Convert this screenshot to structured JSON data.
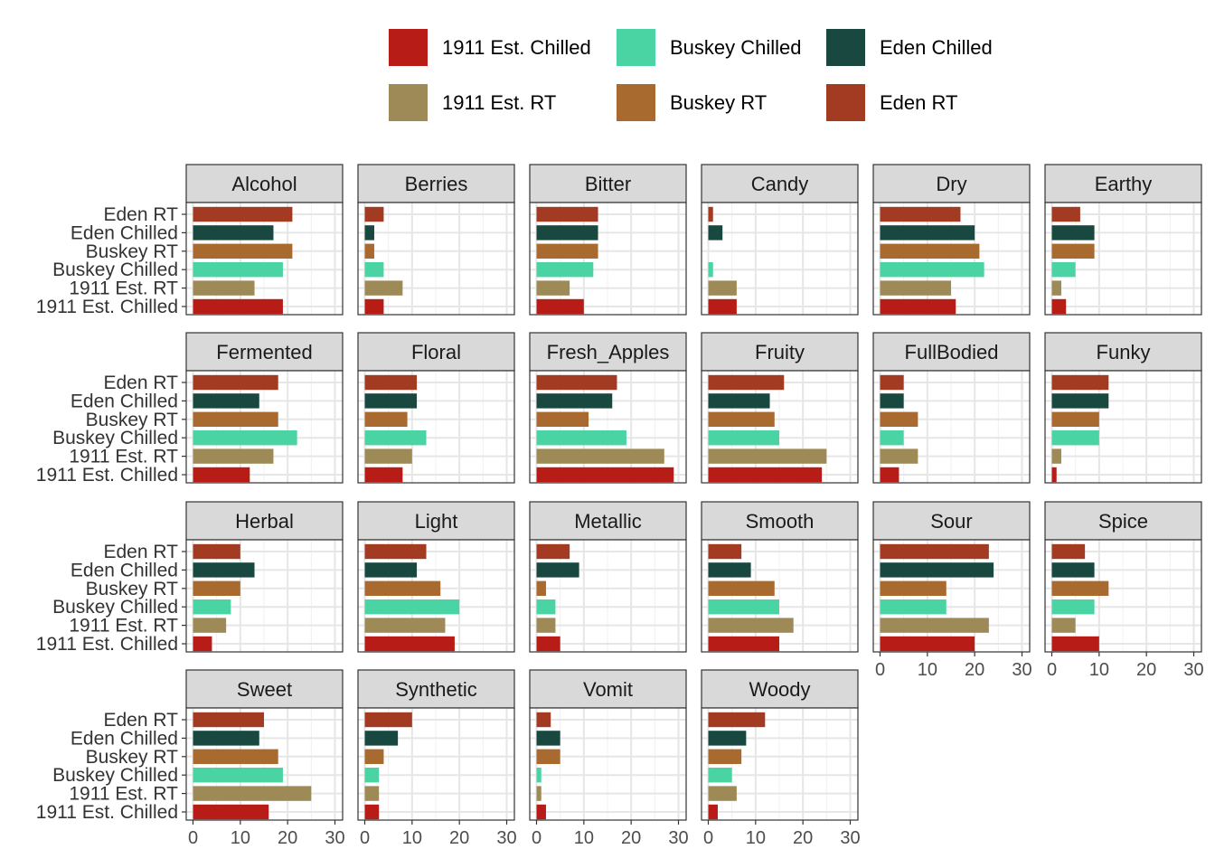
{
  "chart_data": {
    "type": "bar",
    "orientation": "horizontal",
    "facet_columns": 6,
    "categories": [
      "Eden RT",
      "Eden Chilled",
      "Buskey RT",
      "Buskey Chilled",
      "1911 Est. RT",
      "1911 Est. Chilled"
    ],
    "series_colors": {
      "Eden RT": "#A23B22",
      "Eden Chilled": "#184840",
      "Buskey RT": "#A86A2E",
      "Buskey Chilled": "#4AD3A3",
      "1911 Est. RT": "#9E8A56",
      "1911 Est. Chilled": "#B81C17"
    },
    "legend": {
      "position": "top",
      "entries": [
        "1911 Est. Chilled",
        "Buskey Chilled",
        "Eden Chilled",
        "1911 Est. RT",
        "Buskey RT",
        "Eden RT"
      ]
    },
    "xlim": [
      0,
      30
    ],
    "xticks": [
      0,
      10,
      20,
      30
    ],
    "grid": true,
    "facets": [
      {
        "name": "Alcohol",
        "values": [
          21,
          17,
          21,
          19,
          13,
          19
        ]
      },
      {
        "name": "Berries",
        "values": [
          4,
          2,
          2,
          4,
          8,
          4
        ]
      },
      {
        "name": "Bitter",
        "values": [
          13,
          13,
          13,
          12,
          7,
          10
        ]
      },
      {
        "name": "Candy",
        "values": [
          1,
          3,
          0,
          1,
          6,
          6
        ]
      },
      {
        "name": "Dry",
        "values": [
          17,
          20,
          21,
          22,
          15,
          16
        ]
      },
      {
        "name": "Earthy",
        "values": [
          6,
          9,
          9,
          5,
          2,
          3
        ]
      },
      {
        "name": "Fermented",
        "values": [
          18,
          14,
          18,
          22,
          17,
          12
        ]
      },
      {
        "name": "Floral",
        "values": [
          11,
          11,
          9,
          13,
          10,
          8
        ]
      },
      {
        "name": "Fresh_Apples",
        "values": [
          17,
          16,
          11,
          19,
          27,
          29
        ]
      },
      {
        "name": "Fruity",
        "values": [
          16,
          13,
          14,
          15,
          25,
          24
        ]
      },
      {
        "name": "FullBodied",
        "values": [
          5,
          5,
          8,
          5,
          8,
          4
        ]
      },
      {
        "name": "Funky",
        "values": [
          12,
          12,
          10,
          10,
          2,
          1
        ]
      },
      {
        "name": "Herbal",
        "values": [
          10,
          13,
          10,
          8,
          7,
          4
        ]
      },
      {
        "name": "Light",
        "values": [
          13,
          11,
          16,
          20,
          17,
          19
        ]
      },
      {
        "name": "Metallic",
        "values": [
          7,
          9,
          2,
          4,
          4,
          5
        ]
      },
      {
        "name": "Smooth",
        "values": [
          7,
          9,
          14,
          15,
          18,
          15
        ]
      },
      {
        "name": "Sour",
        "values": [
          23,
          24,
          14,
          14,
          23,
          20
        ]
      },
      {
        "name": "Spice",
        "values": [
          7,
          9,
          12,
          9,
          5,
          10
        ]
      },
      {
        "name": "Sweet",
        "values": [
          15,
          14,
          18,
          19,
          25,
          16
        ]
      },
      {
        "name": "Synthetic",
        "values": [
          10,
          7,
          4,
          3,
          3,
          3
        ]
      },
      {
        "name": "Vomit",
        "values": [
          3,
          5,
          5,
          1,
          1,
          2
        ]
      },
      {
        "name": "Woody",
        "values": [
          12,
          8,
          7,
          5,
          6,
          2
        ]
      }
    ]
  }
}
